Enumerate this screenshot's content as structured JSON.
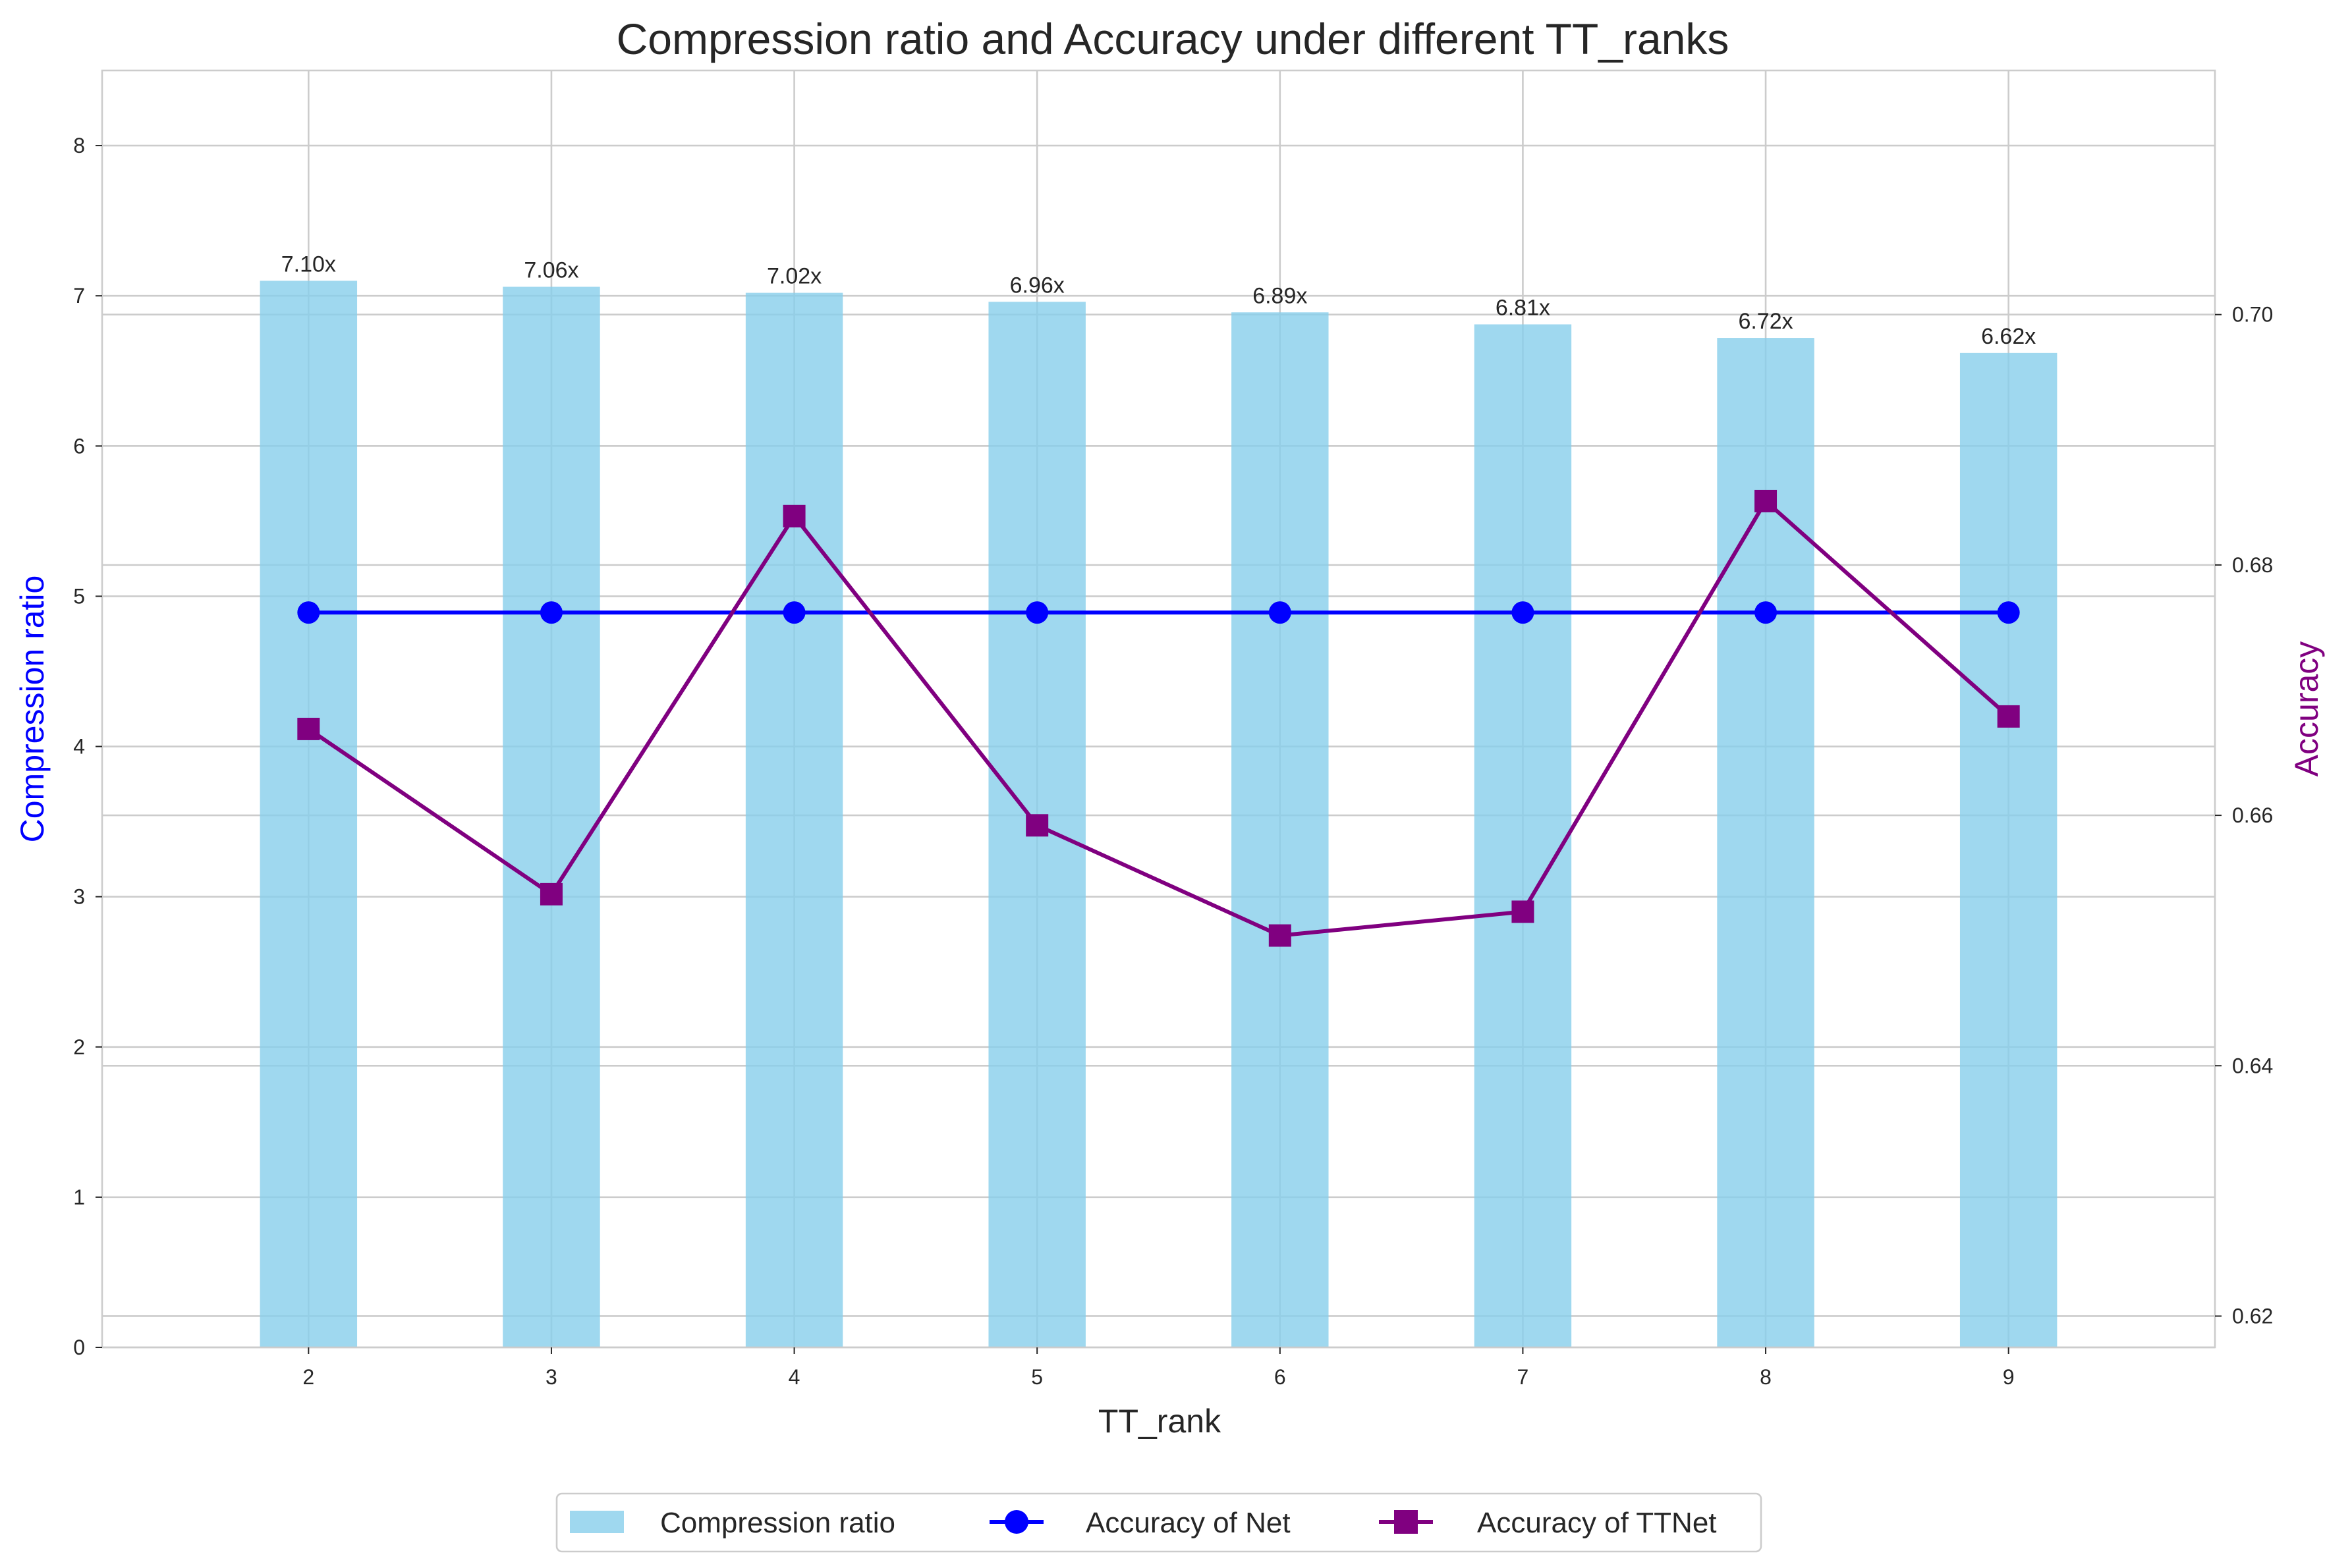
{
  "chart_data": {
    "type": "bar",
    "title": "Compression ratio and Accuracy under different TT_ranks",
    "xlabel": "TT_rank",
    "ylabel": "Compression ratio",
    "y2label": "Accuracy",
    "categories": [
      "2",
      "3",
      "4",
      "5",
      "6",
      "7",
      "8",
      "9"
    ],
    "ylim": [
      0,
      8.5
    ],
    "y2lim": [
      0.6175,
      0.7195
    ],
    "yticks": [
      "0",
      "1",
      "2",
      "3",
      "4",
      "5",
      "6",
      "7",
      "8"
    ],
    "y2ticks": [
      "0.62",
      "0.64",
      "0.66",
      "0.68",
      "0.70"
    ],
    "grid": true,
    "legend_position": "bottom-center",
    "series": [
      {
        "name": "Compression ratio",
        "kind": "bar",
        "axis": "left",
        "color": "#87ceeb",
        "values": [
          7.1,
          7.06,
          7.02,
          6.96,
          6.89,
          6.81,
          6.72,
          6.62
        ],
        "labels": [
          "7.10x",
          "7.06x",
          "7.02x",
          "6.96x",
          "6.89x",
          "6.81x",
          "6.72x",
          "6.62x"
        ]
      },
      {
        "name": "Accuracy of Net",
        "kind": "line",
        "marker": "circle",
        "axis": "right",
        "color": "#0000ff",
        "values": [
          0.6762,
          0.6762,
          0.6762,
          0.6762,
          0.6762,
          0.6762,
          0.6762,
          0.6762
        ]
      },
      {
        "name": "Accuracy of TTNet",
        "kind": "line",
        "marker": "square",
        "axis": "right",
        "color": "#800080",
        "values": [
          0.6669,
          0.6537,
          0.6839,
          0.6592,
          0.6504,
          0.6523,
          0.6851,
          0.6679
        ]
      }
    ],
    "ylabel_color": "#0000ff",
    "y2label_color": "#800080"
  }
}
